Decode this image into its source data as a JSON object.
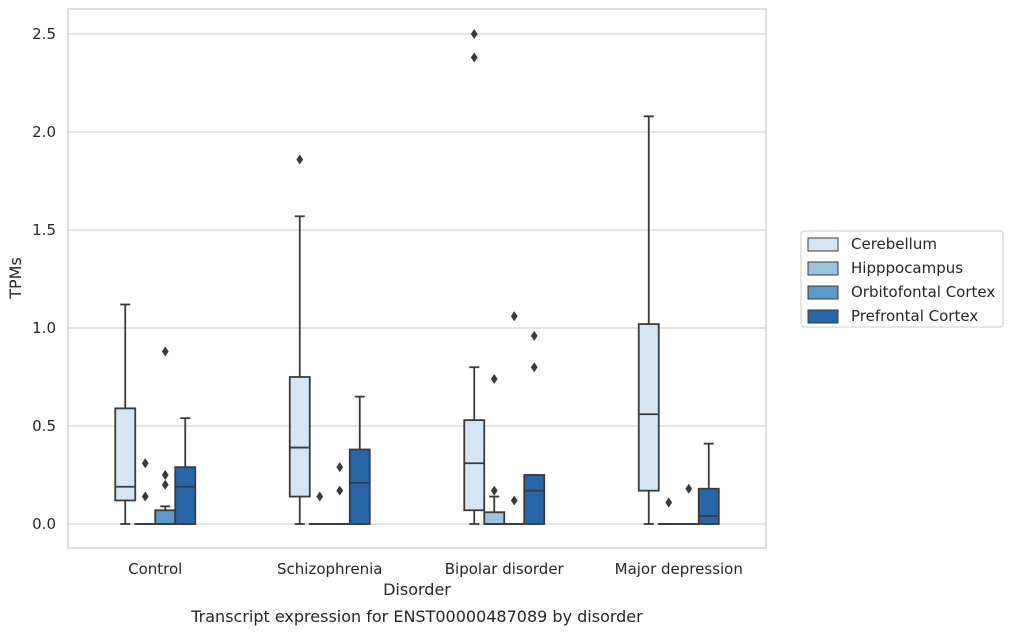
{
  "chart_data": {
    "type": "box",
    "title": "",
    "caption": "Transcript expression for ENST00000487089 by disorder",
    "xlabel": "Disorder",
    "ylabel": "TPMs",
    "ylim": [
      -0.12,
      2.63
    ],
    "yticks": [
      0.0,
      0.5,
      1.0,
      1.5,
      2.0,
      2.5
    ],
    "ytick_labels": [
      "0.0",
      "0.5",
      "1.0",
      "1.5",
      "2.0",
      "2.5"
    ],
    "grid": "horizontal",
    "legend_position": "right",
    "categories": [
      "Control",
      "Schizophrenia",
      "Bipolar disorder",
      "Major depression"
    ],
    "series": [
      {
        "name": "Cerebellum",
        "color": "#d6e5f4",
        "boxes": [
          {
            "whislo": 0.0,
            "q1": 0.12,
            "med": 0.19,
            "q3": 0.59,
            "whishi": 1.12,
            "fliers": []
          },
          {
            "whislo": 0.0,
            "q1": 0.14,
            "med": 0.39,
            "q3": 0.75,
            "whishi": 1.57,
            "fliers": [
              1.86
            ]
          },
          {
            "whislo": 0.0,
            "q1": 0.07,
            "med": 0.31,
            "q3": 0.53,
            "whishi": 0.8,
            "fliers": [
              2.38,
              2.5
            ]
          },
          {
            "whislo": 0.0,
            "q1": 0.17,
            "med": 0.56,
            "q3": 1.02,
            "whishi": 2.08,
            "fliers": []
          }
        ]
      },
      {
        "name": "Hipppocampus",
        "color": "#9bc4de",
        "boxes": [
          {
            "whislo": 0.0,
            "q1": 0.0,
            "med": 0.0,
            "q3": 0.0,
            "whishi": 0.0,
            "fliers": [
              0.14,
              0.31
            ]
          },
          {
            "whislo": 0.0,
            "q1": 0.0,
            "med": 0.0,
            "q3": 0.0,
            "whishi": 0.0,
            "fliers": [
              0.14
            ]
          },
          {
            "whislo": 0.0,
            "q1": 0.0,
            "med": 0.0,
            "q3": 0.06,
            "whishi": 0.14,
            "fliers": [
              0.17,
              0.74
            ]
          },
          {
            "whislo": 0.0,
            "q1": 0.0,
            "med": 0.0,
            "q3": 0.0,
            "whishi": 0.0,
            "fliers": [
              0.11
            ]
          }
        ]
      },
      {
        "name": "Orbitofontal Cortex",
        "color": "#5b9bc9",
        "boxes": [
          {
            "whislo": 0.0,
            "q1": 0.0,
            "med": 0.0,
            "q3": 0.07,
            "whishi": 0.09,
            "fliers": [
              0.2,
              0.25,
              0.88
            ]
          },
          {
            "whislo": 0.0,
            "q1": 0.0,
            "med": 0.0,
            "q3": 0.0,
            "whishi": 0.0,
            "fliers": [
              0.17,
              0.29
            ]
          },
          {
            "whislo": 0.0,
            "q1": 0.0,
            "med": 0.0,
            "q3": 0.0,
            "whishi": 0.0,
            "fliers": [
              0.12,
              1.06
            ]
          },
          {
            "whislo": 0.0,
            "q1": 0.0,
            "med": 0.0,
            "q3": 0.0,
            "whishi": 0.0,
            "fliers": [
              0.18
            ]
          }
        ]
      },
      {
        "name": "Prefrontal Cortex",
        "color": "#2866a8",
        "boxes": [
          {
            "whislo": 0.0,
            "q1": 0.0,
            "med": 0.19,
            "q3": 0.29,
            "whishi": 0.54,
            "fliers": []
          },
          {
            "whislo": 0.0,
            "q1": 0.0,
            "med": 0.21,
            "q3": 0.38,
            "whishi": 0.65,
            "fliers": []
          },
          {
            "whislo": 0.0,
            "q1": 0.0,
            "med": 0.17,
            "q3": 0.25,
            "whishi": 0.25,
            "fliers": [
              0.8,
              0.96
            ]
          },
          {
            "whislo": 0.0,
            "q1": 0.0,
            "med": 0.04,
            "q3": 0.18,
            "whishi": 0.41,
            "fliers": []
          }
        ]
      }
    ]
  }
}
